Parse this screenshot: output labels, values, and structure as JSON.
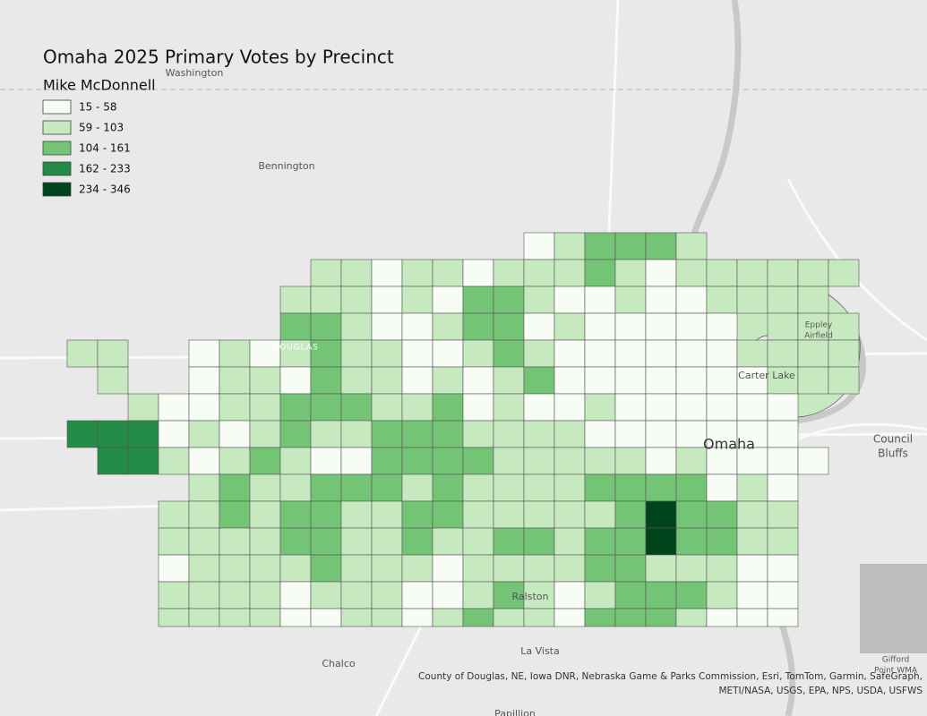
{
  "map": {
    "title": "Omaha 2025 Primary Votes by Precinct",
    "legend": {
      "title": "Mike McDonnell",
      "classes": [
        {
          "label": "15 - 58",
          "color": "#f7fcf5"
        },
        {
          "label": "59 - 103",
          "color": "#c7e9c0"
        },
        {
          "label": "104 - 161",
          "color": "#74c476"
        },
        {
          "label": "162 - 233",
          "color": "#238b45"
        },
        {
          "label": "234 - 346",
          "color": "#00441b"
        }
      ]
    },
    "places": [
      {
        "lines": [
          "Washington"
        ]
      },
      {
        "lines": [
          "Bennington"
        ]
      },
      {
        "lines": [
          "DOUGLAS"
        ]
      },
      {
        "lines": [
          "Eppley",
          "Airfield"
        ]
      },
      {
        "lines": [
          "Carter Lake"
        ]
      },
      {
        "lines": [
          "Omaha"
        ]
      },
      {
        "lines": [
          "Council",
          "Bluffs"
        ]
      },
      {
        "lines": [
          "Ralston"
        ]
      },
      {
        "lines": [
          "La Vista"
        ]
      },
      {
        "lines": [
          "Chalco"
        ]
      },
      {
        "lines": [
          "Gifford",
          "Point WMA"
        ]
      },
      {
        "lines": [
          "Papillion"
        ]
      }
    ],
    "attribution": [
      "County of Douglas, NE, Iowa DNR, Nebraska Game & Parks Commission, Esri, TomTom, Garmin, SafeGraph,",
      "METI/NASA, USGS, EPA, NPS, USDA, USFWS"
    ]
  }
}
